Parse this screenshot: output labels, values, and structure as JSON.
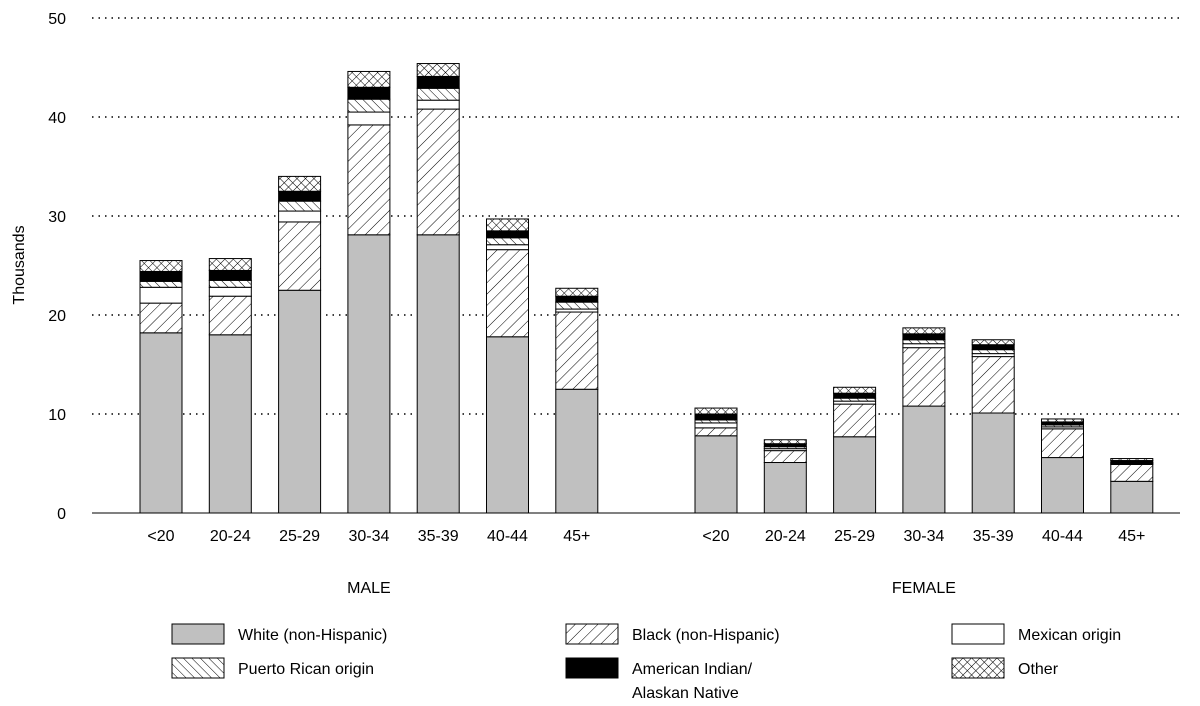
{
  "chart_data": {
    "type": "bar",
    "stacked": true,
    "ylabel": "Thousands",
    "ylim": [
      0,
      50
    ],
    "yticks": [
      0,
      10,
      20,
      30,
      40,
      50
    ],
    "grid": "horizontal-dotted",
    "legend_position": "bottom",
    "categories": [
      "<20",
      "20-24",
      "25-29",
      "30-34",
      "35-39",
      "40-44",
      "45+"
    ],
    "groups": [
      {
        "label": "MALE",
        "series": [
          {
            "name": "White (non-Hispanic)",
            "values": [
              18.2,
              18.0,
              22.5,
              28.1,
              28.1,
              17.8,
              12.5
            ]
          },
          {
            "name": "Black (non-Hispanic)",
            "values": [
              3.0,
              3.9,
              6.9,
              11.1,
              12.7,
              8.8,
              7.8
            ]
          },
          {
            "name": "Mexican origin",
            "values": [
              1.6,
              0.9,
              1.1,
              1.3,
              0.9,
              0.5,
              0.3
            ]
          },
          {
            "name": "Puerto Rican origin",
            "values": [
              0.6,
              0.7,
              1.0,
              1.3,
              1.2,
              0.7,
              0.7
            ]
          },
          {
            "name": "American Indian/ Alaskan Native",
            "values": [
              1.0,
              1.0,
              1.0,
              1.2,
              1.2,
              0.7,
              0.6
            ]
          },
          {
            "name": "Other",
            "values": [
              1.1,
              1.2,
              1.5,
              1.6,
              1.3,
              1.2,
              0.8
            ]
          }
        ]
      },
      {
        "label": "FEMALE",
        "series": [
          {
            "name": "White (non-Hispanic)",
            "values": [
              7.8,
              5.1,
              7.7,
              10.8,
              10.1,
              5.6,
              3.2
            ]
          },
          {
            "name": "Black (non-Hispanic)",
            "values": [
              0.8,
              1.2,
              3.3,
              5.9,
              5.7,
              2.9,
              1.7
            ]
          },
          {
            "name": "Mexican origin",
            "values": [
              0.5,
              0.2,
              0.3,
              0.4,
              0.3,
              0.2,
              0.1
            ]
          },
          {
            "name": "Puerto Rican origin",
            "values": [
              0.3,
              0.2,
              0.3,
              0.4,
              0.4,
              0.2,
              0.1
            ]
          },
          {
            "name": "American Indian/ Alaskan Native",
            "values": [
              0.6,
              0.3,
              0.5,
              0.6,
              0.5,
              0.3,
              0.2
            ]
          },
          {
            "name": "Other",
            "values": [
              0.6,
              0.4,
              0.6,
              0.6,
              0.5,
              0.3,
              0.2
            ]
          }
        ]
      }
    ],
    "legend": [
      {
        "label": "White (non-Hispanic)",
        "pattern": "solid-gray"
      },
      {
        "label": "Black (non-Hispanic)",
        "pattern": "diagonal-forward"
      },
      {
        "label": "Mexican origin",
        "pattern": "white"
      },
      {
        "label": "Puerto Rican origin",
        "pattern": "diagonal-back"
      },
      {
        "label": "American Indian/\nAlaskan Native",
        "pattern": "solid-black"
      },
      {
        "label": "Other",
        "pattern": "crosshatch"
      }
    ],
    "colors": {
      "white_fill": "#c0c0c0",
      "black_fill": "#000000",
      "outline": "#000000"
    }
  }
}
